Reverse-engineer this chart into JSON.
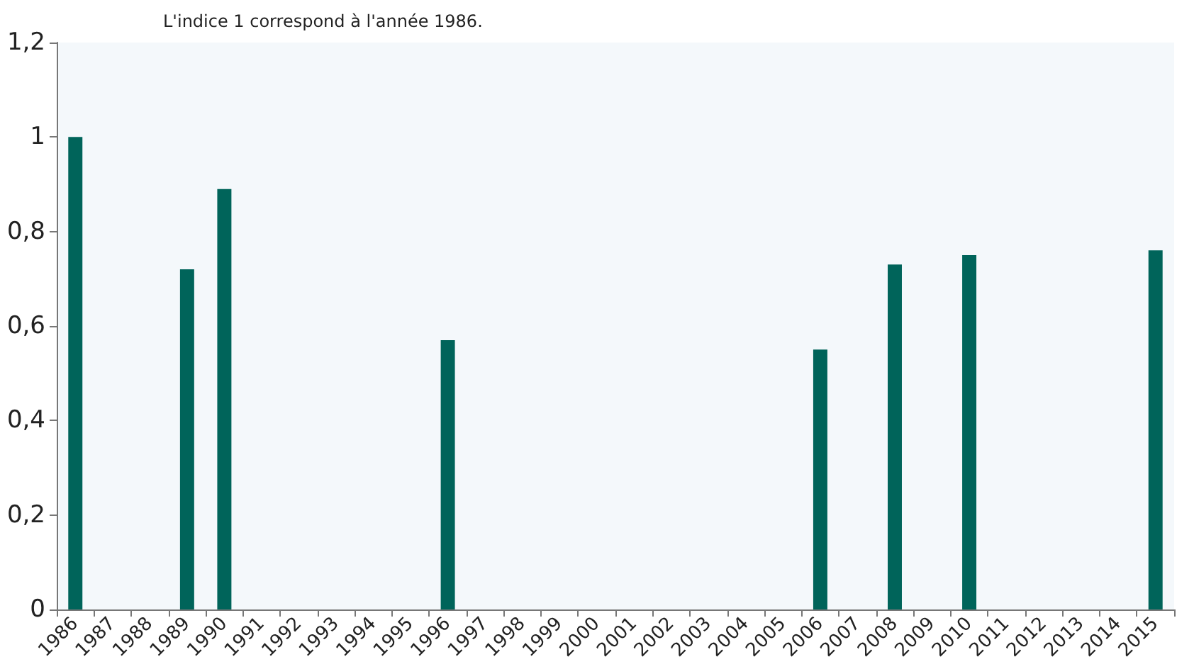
{
  "chart_data": {
    "type": "bar",
    "subtitle": "L'indice 1 correspond à l'année 1986.",
    "categories": [
      "1986",
      "1987",
      "1988",
      "1989",
      "1990",
      "1991",
      "1992",
      "1993",
      "1994",
      "1995",
      "1996",
      "1997",
      "1998",
      "1999",
      "2000",
      "2001",
      "2002",
      "2003",
      "2004",
      "2005",
      "2006",
      "2007",
      "2008",
      "2009",
      "2010",
      "2011",
      "2012",
      "2013",
      "2014",
      "2015"
    ],
    "values": [
      1.0,
      null,
      null,
      0.72,
      0.89,
      null,
      null,
      null,
      null,
      null,
      0.57,
      null,
      null,
      null,
      null,
      null,
      null,
      null,
      null,
      null,
      0.55,
      null,
      0.73,
      null,
      0.75,
      null,
      null,
      null,
      null,
      0.76
    ],
    "color": "#00645a",
    "ylim": [
      0,
      1.2
    ],
    "yticks": [
      0,
      {
        "value": 0.2,
        "label": "0,2"
      },
      {
        "value": 0.4,
        "label": "0,4"
      },
      {
        "value": 0.6,
        "label": "0,6"
      },
      {
        "value": 0.8,
        "label": "0,8"
      },
      1,
      {
        "value": 1.2,
        "label": "1,2"
      }
    ],
    "grid": false
  }
}
